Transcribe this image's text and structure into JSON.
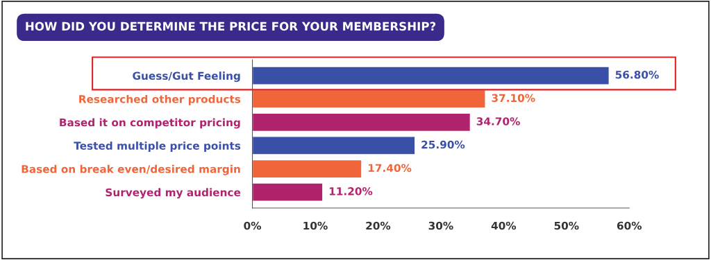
{
  "chart_data": {
    "type": "bar",
    "orientation": "horizontal",
    "title": "HOW DID YOU DETERMINE THE PRICE FOR YOUR MEMBERSHIP?",
    "categories": [
      "Guess/Gut Feeling",
      "Researched other products",
      "Based it on competitor pricing",
      "Tested multiple price points",
      "Based on break even/desired margin",
      "Surveyed my audience"
    ],
    "values": [
      56.8,
      37.1,
      34.7,
      25.9,
      17.4,
      11.2
    ],
    "value_labels": [
      "56.80%",
      "37.10%",
      "34.70%",
      "25.90%",
      "17.40%",
      "11.20%"
    ],
    "colors": [
      "#3a4fa6",
      "#f0663a",
      "#b0246e",
      "#3a4fa6",
      "#f0663a",
      "#b0246e"
    ],
    "xlim": [
      0,
      60
    ],
    "xticks": [
      {
        "value": 0,
        "label": "0%"
      },
      {
        "value": 10,
        "label": "10%"
      },
      {
        "value": 20,
        "label": "20%"
      },
      {
        "value": 30,
        "label": "30%"
      },
      {
        "value": 40,
        "label": "40%"
      },
      {
        "value": 50,
        "label": "50%"
      },
      {
        "value": 60,
        "label": "60%"
      }
    ],
    "grid": false
  }
}
